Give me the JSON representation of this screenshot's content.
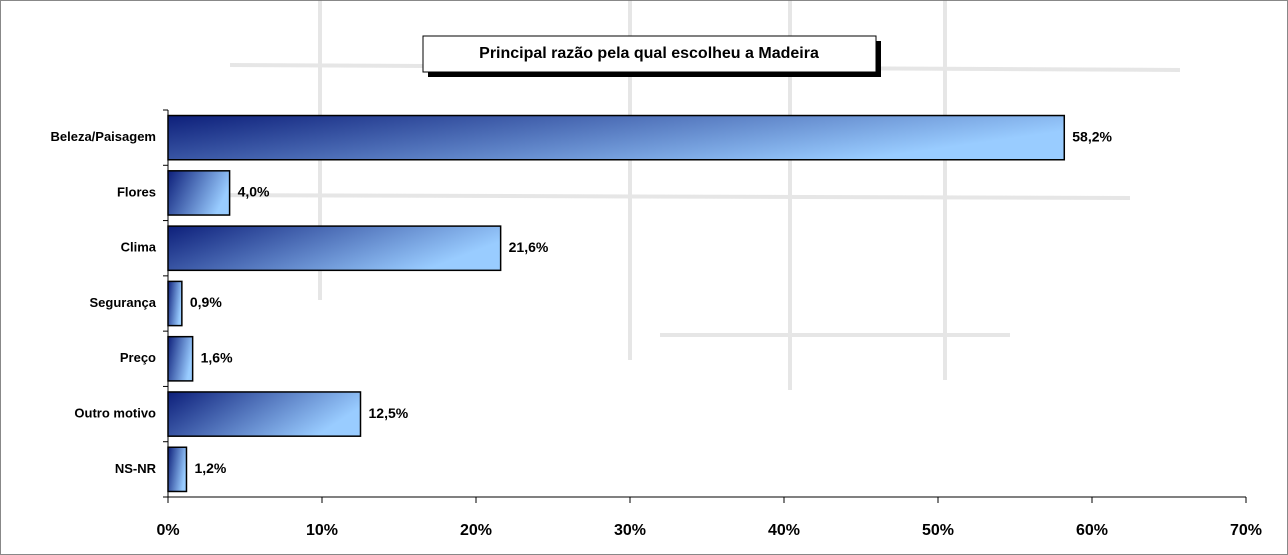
{
  "chart_data": {
    "type": "bar",
    "orientation": "horizontal",
    "title": "Principal razão pela qual escolheu a Madeira",
    "categories": [
      "Beleza/Paisagem",
      "Flores",
      "Clima",
      "Segurança",
      "Preço",
      "Outro motivo",
      "NS-NR"
    ],
    "values": [
      58.2,
      4.0,
      21.6,
      0.9,
      1.6,
      12.5,
      1.2
    ],
    "value_labels": [
      "58,2%",
      "4,0%",
      "21,6%",
      "0,9%",
      "1,6%",
      "12,5%",
      "1,2%"
    ],
    "color": "#99ccff",
    "gradient_color": "#0d1f7a",
    "xlim": [
      0,
      70
    ],
    "xticks": [
      {
        "value": 0,
        "label": "0%"
      },
      {
        "value": 10,
        "label": "10%"
      },
      {
        "value": 20,
        "label": "20%"
      },
      {
        "value": 30,
        "label": "30%"
      },
      {
        "value": 40,
        "label": "40%"
      },
      {
        "value": 50,
        "label": "50%"
      },
      {
        "value": 60,
        "label": "60%"
      },
      {
        "value": 70,
        "label": "70%"
      }
    ],
    "grid": false
  }
}
